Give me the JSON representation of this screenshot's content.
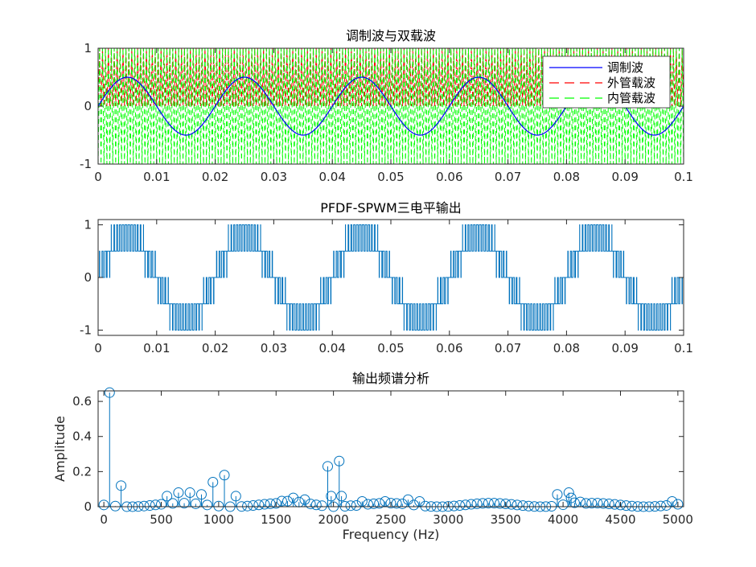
{
  "chart_data": [
    {
      "type": "line",
      "title": "调制波与双载波",
      "xlim": [
        0,
        0.1
      ],
      "ylim": [
        -1,
        1
      ],
      "xticks": [
        "0",
        "0.01",
        "0.02",
        "0.03",
        "0.04",
        "0.05",
        "0.06",
        "0.07",
        "0.08",
        "0.09",
        "0.1"
      ],
      "yticks": [
        "-1",
        "0",
        "1"
      ],
      "modulation": {
        "amplitude": 0.5,
        "frequency_hz": 50
      },
      "carrier_frequency_hz": 2000,
      "legend_position": "top-right",
      "series": [
        {
          "name": "调制波",
          "color": "#0000ff",
          "style": "solid"
        },
        {
          "name": "外管载波",
          "color": "#ff0000",
          "style": "dashed"
        },
        {
          "name": "内管载波",
          "color": "#00ff00",
          "style": "dashed"
        }
      ]
    },
    {
      "type": "line",
      "title": "PFDF-SPWM三电平输出",
      "xlim": [
        0,
        0.1
      ],
      "ylim": [
        -1.1,
        1.1
      ],
      "xticks": [
        "0",
        "0.01",
        "0.02",
        "0.03",
        "0.04",
        "0.05",
        "0.06",
        "0.07",
        "0.08",
        "0.09",
        "0.1"
      ],
      "yticks": [
        "-1",
        "0",
        "1"
      ],
      "levels": [
        -1,
        -0.5,
        0,
        0.5,
        1
      ],
      "color": "#0072bd"
    },
    {
      "type": "stem",
      "title": "输出频谱分析",
      "xlabel": "Frequency (Hz)",
      "ylabel": "Amplitude",
      "xlim": [
        -50,
        5050
      ],
      "ylim": [
        0,
        0.66
      ],
      "xticks": [
        "0",
        "500",
        "1000",
        "1500",
        "2000",
        "2500",
        "3000",
        "3500",
        "4000",
        "4500",
        "5000"
      ],
      "yticks": [
        "0",
        "0.2",
        "0.4",
        "0.6"
      ],
      "color": "#0072bd",
      "peaks": [
        {
          "x": 50,
          "y": 0.65
        },
        {
          "x": 150,
          "y": 0.12
        },
        {
          "x": 550,
          "y": 0.06
        },
        {
          "x": 650,
          "y": 0.08
        },
        {
          "x": 750,
          "y": 0.08
        },
        {
          "x": 850,
          "y": 0.07
        },
        {
          "x": 950,
          "y": 0.14
        },
        {
          "x": 1050,
          "y": 0.18
        },
        {
          "x": 1150,
          "y": 0.06
        },
        {
          "x": 1650,
          "y": 0.05
        },
        {
          "x": 1750,
          "y": 0.04
        },
        {
          "x": 1950,
          "y": 0.23
        },
        {
          "x": 1980,
          "y": 0.06
        },
        {
          "x": 2050,
          "y": 0.26
        },
        {
          "x": 2070,
          "y": 0.06
        },
        {
          "x": 2250,
          "y": 0.03
        },
        {
          "x": 2450,
          "y": 0.03
        },
        {
          "x": 2650,
          "y": 0.04
        },
        {
          "x": 2750,
          "y": 0.03
        },
        {
          "x": 3950,
          "y": 0.07
        },
        {
          "x": 4050,
          "y": 0.08
        },
        {
          "x": 4070,
          "y": 0.05
        },
        {
          "x": 4950,
          "y": 0.03
        }
      ],
      "baseline_spacing_hz": 50,
      "baseline_amplitude_max": 0.02
    }
  ]
}
